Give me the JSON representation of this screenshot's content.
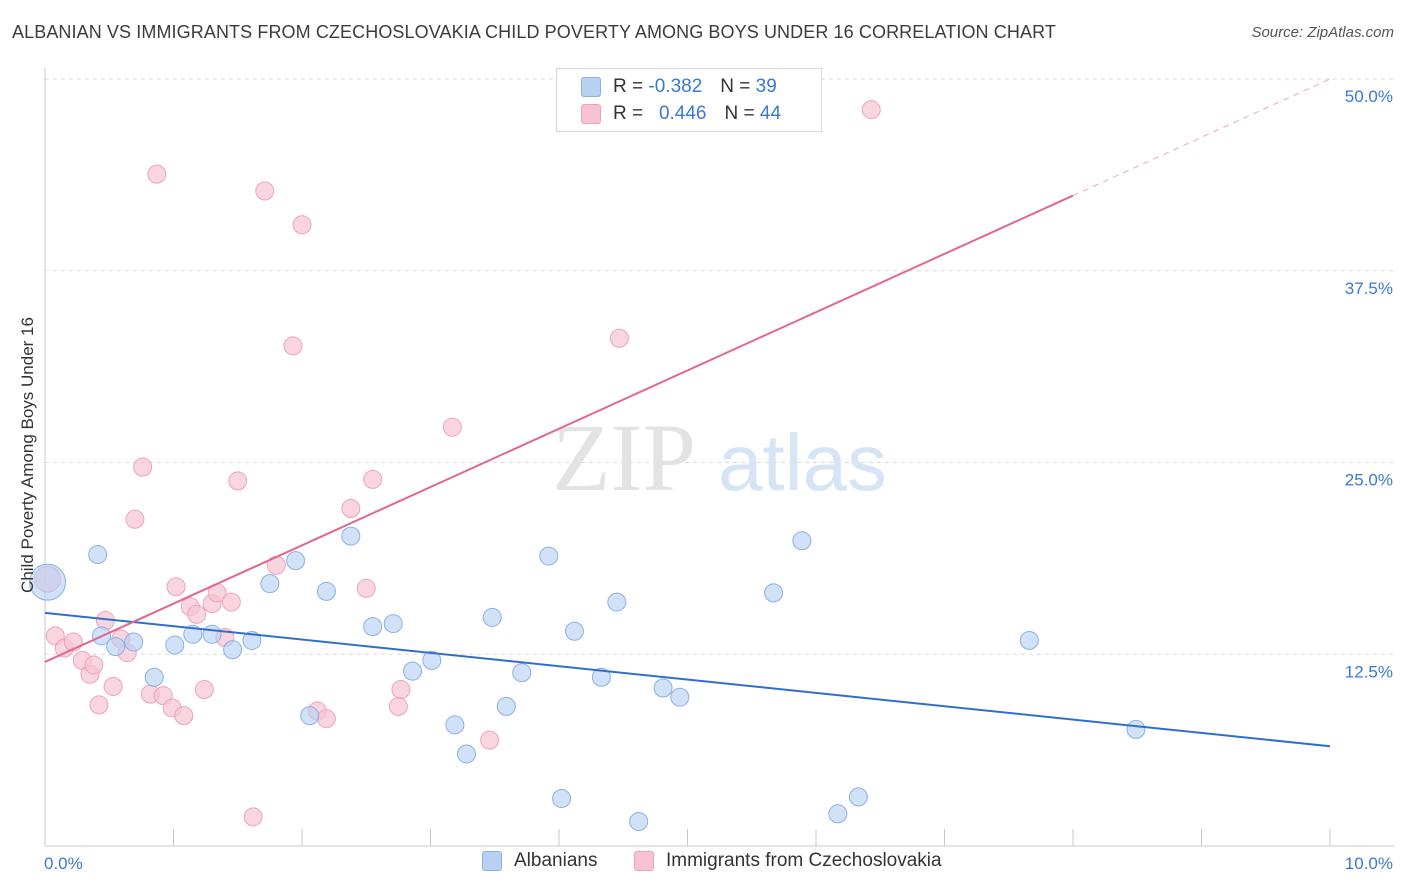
{
  "title": "ALBANIAN VS IMMIGRANTS FROM CZECHOSLOVAKIA CHILD POVERTY AMONG BOYS UNDER 16 CORRELATION CHART",
  "source": "Source: ZipAtlas.com",
  "watermark": {
    "zip": "ZIP",
    "atlas": "atlas"
  },
  "legend": {
    "albanians": {
      "r_label": "R =",
      "r_value": "-0.382",
      "n_label": "N =",
      "n_value": "39"
    },
    "czech": {
      "r_label": "R =",
      "r_value": "0.446",
      "n_label": "N =",
      "n_value": "44"
    }
  },
  "bottom_legend": {
    "albanians": "Albanians",
    "czech": "Immigrants from Czechoslovakia"
  },
  "colors": {
    "blue_fill": "#b8d1f3",
    "blue_stroke": "#8ab0e6",
    "blue_line": "#2f6fcc",
    "pink_fill": "#f7c3d3",
    "pink_stroke": "#eea3bb",
    "pink_line": "#e0688f",
    "tick_label": "#3a78d4",
    "grid": "#d9d9d9"
  },
  "chart_data": {
    "type": "scatter",
    "xlabel": "",
    "ylabel": "Child Poverty Among Boys Under 16",
    "xlim": [
      0,
      10
    ],
    "ylim": [
      0,
      50
    ],
    "x_tick_labels": [
      "0.0%",
      "10.0%"
    ],
    "y_ticks": [
      12.5,
      25,
      37.5,
      50
    ],
    "y_tick_labels": [
      "12.5%",
      "25.0%",
      "37.5%",
      "50.0%"
    ],
    "grid": "horizontal dashed",
    "series": [
      {
        "name": "Albanians",
        "r": -0.382,
        "n": 39,
        "trend": {
          "x0": 0,
          "y0": 15.2,
          "x1": 10,
          "y1": 6.5
        },
        "points": [
          {
            "x": 0.02,
            "y": 17.2,
            "big": true
          },
          {
            "x": 0.41,
            "y": 19.0
          },
          {
            "x": 0.44,
            "y": 13.7
          },
          {
            "x": 0.55,
            "y": 13.0
          },
          {
            "x": 0.69,
            "y": 13.3
          },
          {
            "x": 0.85,
            "y": 11.0
          },
          {
            "x": 1.01,
            "y": 13.1
          },
          {
            "x": 1.15,
            "y": 13.8
          },
          {
            "x": 1.3,
            "y": 13.8
          },
          {
            "x": 1.46,
            "y": 12.8
          },
          {
            "x": 1.61,
            "y": 13.4
          },
          {
            "x": 1.75,
            "y": 17.1
          },
          {
            "x": 1.95,
            "y": 18.6
          },
          {
            "x": 2.06,
            "y": 8.5
          },
          {
            "x": 2.19,
            "y": 16.6
          },
          {
            "x": 2.38,
            "y": 20.2
          },
          {
            "x": 2.55,
            "y": 14.3
          },
          {
            "x": 2.71,
            "y": 14.5
          },
          {
            "x": 2.86,
            "y": 11.4
          },
          {
            "x": 3.01,
            "y": 12.1
          },
          {
            "x": 3.19,
            "y": 7.9
          },
          {
            "x": 3.28,
            "y": 6.0
          },
          {
            "x": 3.48,
            "y": 14.9
          },
          {
            "x": 3.59,
            "y": 9.1
          },
          {
            "x": 3.71,
            "y": 11.3
          },
          {
            "x": 3.92,
            "y": 18.9
          },
          {
            "x": 4.02,
            "y": 3.1
          },
          {
            "x": 4.12,
            "y": 14.0
          },
          {
            "x": 4.33,
            "y": 11.0
          },
          {
            "x": 4.45,
            "y": 15.9
          },
          {
            "x": 4.62,
            "y": 1.6
          },
          {
            "x": 4.81,
            "y": 10.3
          },
          {
            "x": 4.94,
            "y": 9.7
          },
          {
            "x": 5.67,
            "y": 16.5
          },
          {
            "x": 5.89,
            "y": 19.9
          },
          {
            "x": 6.17,
            "y": 2.1
          },
          {
            "x": 6.33,
            "y": 3.2
          },
          {
            "x": 7.66,
            "y": 13.4
          },
          {
            "x": 8.49,
            "y": 7.6
          }
        ]
      },
      {
        "name": "Immigrants from Czechoslovakia",
        "r": 0.446,
        "n": 44,
        "trend": {
          "x0": 0,
          "y0": 12.0,
          "x1": 8.0,
          "y1": 42.4
        },
        "trend_extension": {
          "x0": 8.0,
          "y0": 42.4,
          "x1": 10.0,
          "y1": 50.0
        },
        "points": [
          {
            "x": 0.02,
            "y": 17.4,
            "big": true
          },
          {
            "x": 0.08,
            "y": 13.7
          },
          {
            "x": 0.15,
            "y": 12.9
          },
          {
            "x": 0.22,
            "y": 13.3
          },
          {
            "x": 0.29,
            "y": 12.1
          },
          {
            "x": 0.35,
            "y": 11.2
          },
          {
            "x": 0.38,
            "y": 11.8
          },
          {
            "x": 0.42,
            "y": 9.2
          },
          {
            "x": 0.47,
            "y": 14.7
          },
          {
            "x": 0.53,
            "y": 10.4
          },
          {
            "x": 0.59,
            "y": 13.5
          },
          {
            "x": 0.64,
            "y": 12.6
          },
          {
            "x": 0.7,
            "y": 21.3
          },
          {
            "x": 0.76,
            "y": 24.7
          },
          {
            "x": 0.82,
            "y": 9.9
          },
          {
            "x": 0.87,
            "y": 43.8
          },
          {
            "x": 0.92,
            "y": 9.8
          },
          {
            "x": 0.99,
            "y": 9.0
          },
          {
            "x": 1.02,
            "y": 16.9
          },
          {
            "x": 1.08,
            "y": 8.5
          },
          {
            "x": 1.13,
            "y": 15.6
          },
          {
            "x": 1.18,
            "y": 15.1
          },
          {
            "x": 1.24,
            "y": 10.2
          },
          {
            "x": 1.3,
            "y": 15.8
          },
          {
            "x": 1.34,
            "y": 16.5
          },
          {
            "x": 1.4,
            "y": 13.6
          },
          {
            "x": 1.45,
            "y": 15.9
          },
          {
            "x": 1.5,
            "y": 23.8
          },
          {
            "x": 1.62,
            "y": 1.9
          },
          {
            "x": 1.71,
            "y": 42.7
          },
          {
            "x": 1.8,
            "y": 18.3
          },
          {
            "x": 1.93,
            "y": 32.6
          },
          {
            "x": 2.0,
            "y": 40.5
          },
          {
            "x": 2.12,
            "y": 8.8
          },
          {
            "x": 2.19,
            "y": 8.3
          },
          {
            "x": 2.38,
            "y": 22.0
          },
          {
            "x": 2.5,
            "y": 16.8
          },
          {
            "x": 2.55,
            "y": 23.9
          },
          {
            "x": 2.75,
            "y": 9.1
          },
          {
            "x": 2.77,
            "y": 10.2
          },
          {
            "x": 3.17,
            "y": 27.3
          },
          {
            "x": 3.46,
            "y": 6.9
          },
          {
            "x": 4.47,
            "y": 33.1
          },
          {
            "x": 6.43,
            "y": 48.0
          }
        ]
      }
    ]
  }
}
